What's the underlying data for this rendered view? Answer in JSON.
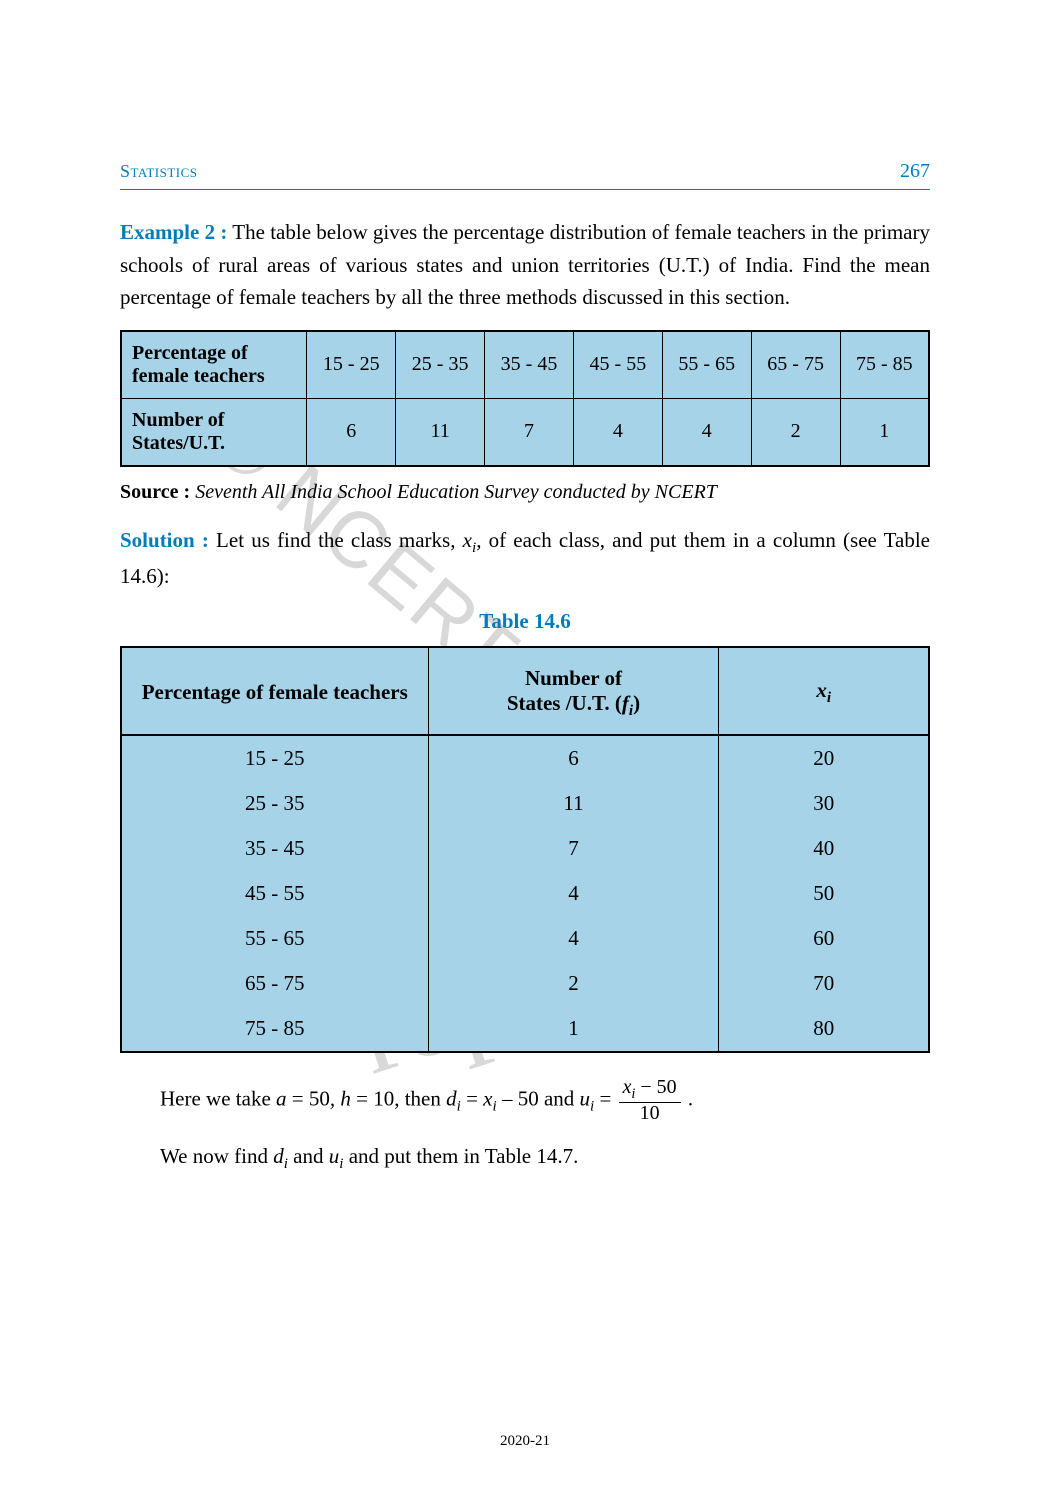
{
  "header": {
    "chapter_title": "Statistics",
    "page_number": "267"
  },
  "example": {
    "label": "Example 2 :",
    "text": " The table below gives the percentage distribution of female teachers in the primary schools of rural areas of various states and union territories (U.T.) of India. Find the mean percentage of female teachers by all the three methods discussed in this section."
  },
  "table1": {
    "row1_label": "Percentage of female teachers",
    "row2_label": "Number of States/U.T.",
    "columns": [
      "15 - 25",
      "25 - 35",
      "35 - 45",
      "45 - 55",
      "55 - 65",
      "65 - 75",
      "75 - 85"
    ],
    "values": [
      "6",
      "11",
      "7",
      "4",
      "4",
      "2",
      "1"
    ],
    "col_widths": [
      "23%",
      "11%",
      "11%",
      "11%",
      "11%",
      "11%",
      "11%",
      "11%"
    ],
    "bg_color": "#a7d3e8",
    "border_color": "#000000"
  },
  "source": {
    "label": "Source : ",
    "text": "Seventh All India School Education Survey conducted by NCERT"
  },
  "solution": {
    "label": "Solution :",
    "text_part1": " Let us find the class marks, ",
    "var_x": "x",
    "sub_i": "i",
    "text_part2": ", of each class, and put them in a column (see Table 14.6):"
  },
  "table2_caption": "Table 14.6",
  "table2": {
    "headers": {
      "c1": "Percentage of female teachers",
      "c2_line1": "Number of",
      "c2_line2_a": "States /U.T. (",
      "c2_line2_b": "f",
      "c2_line2_c": ")",
      "c3_var": "x",
      "c3_sub": "i"
    },
    "col_widths": [
      "38%",
      "36%",
      "26%"
    ],
    "rows": [
      {
        "c1": "15 - 25",
        "c2": "6",
        "c3": "20"
      },
      {
        "c1": "25 - 35",
        "c2": "11",
        "c3": "30"
      },
      {
        "c1": "35 - 45",
        "c2": "7",
        "c3": "40"
      },
      {
        "c1": "45 - 55",
        "c2": "4",
        "c3": "50"
      },
      {
        "c1": "55 - 65",
        "c2": "4",
        "c3": "60"
      },
      {
        "c1": "65 - 75",
        "c2": "2",
        "c3": "70"
      },
      {
        "c1": "75 - 85",
        "c2": "1",
        "c3": "80"
      }
    ],
    "bg_color": "#a7d3e8"
  },
  "para_after_table2": {
    "part1": "Here we take ",
    "a_eq": "a",
    "eq1": " = 50, ",
    "h_eq": "h",
    "eq2": " = 10, then ",
    "d_var": "d",
    "eq3": " = ",
    "x_var": "x",
    "eq4": " – 50 and  ",
    "u_var": "u",
    "eq5": " = ",
    "frac_num_a": "x",
    "frac_num_b": " − 50",
    "frac_den": "10",
    "part_end": " ."
  },
  "para_last": {
    "part1": "We now find ",
    "d_var": "d",
    "part2": " and ",
    "u_var": "u",
    "part3": " and put them in Table 14.7."
  },
  "watermarks": {
    "wm1": "not to be republished",
    "wm2": "© NCERT"
  },
  "footer": "2020-21",
  "colors": {
    "accent": "#007db8",
    "table_bg": "#a7d3e8",
    "text": "#000000",
    "watermark": "#d8d8d8"
  }
}
